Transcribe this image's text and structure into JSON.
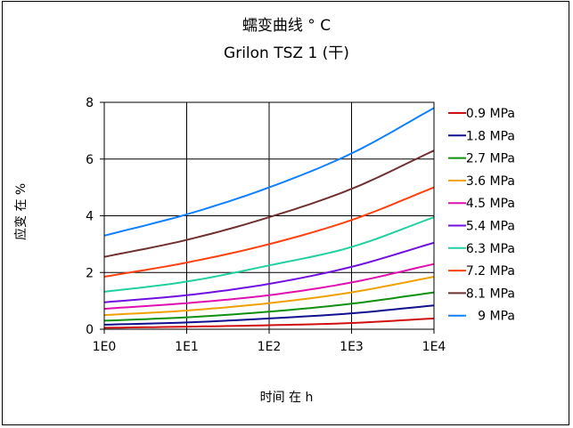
{
  "chart_data": {
    "type": "line",
    "title": "蠕变曲线 °  C",
    "subtitle": "Grilon TSZ 1 (干)",
    "xlabel": "时间 在 h",
    "ylabel": "应变 在  %",
    "x_scale": "log",
    "x_ticks": [
      "1E0",
      "1E1",
      "1E2",
      "1E3",
      "1E4"
    ],
    "xlim": [
      1,
      10000
    ],
    "y_ticks": [
      "0",
      "2",
      "4",
      "6",
      "8"
    ],
    "ylim": [
      0,
      8
    ],
    "grid": true,
    "legend_position": "right",
    "x": [
      1,
      10,
      100,
      1000,
      10000
    ],
    "series": [
      {
        "name": "0.9 MPa",
        "color": "#d01010",
        "values": [
          0.05,
          0.09,
          0.14,
          0.22,
          0.38
        ]
      },
      {
        "name": "1.8 MPa",
        "color": "#101090",
        "values": [
          0.16,
          0.24,
          0.38,
          0.56,
          0.84
        ]
      },
      {
        "name": "2.7 MPa",
        "color": "#109010",
        "values": [
          0.3,
          0.42,
          0.62,
          0.9,
          1.3
        ]
      },
      {
        "name": "3.6 MPa",
        "color": "#f0a000",
        "values": [
          0.5,
          0.66,
          0.92,
          1.3,
          1.85
        ]
      },
      {
        "name": "4.5 MPa",
        "color": "#e010b0",
        "values": [
          0.72,
          0.92,
          1.2,
          1.65,
          2.3
        ]
      },
      {
        "name": "5.4 MPa",
        "color": "#7010e0",
        "values": [
          0.95,
          1.2,
          1.6,
          2.2,
          3.05
        ]
      },
      {
        "name": "6.3 MPa",
        "color": "#20d0a0",
        "values": [
          1.32,
          1.68,
          2.25,
          2.9,
          3.95
        ]
      },
      {
        "name": "7.2 MPa",
        "color": "#ff4010",
        "values": [
          1.85,
          2.35,
          3.0,
          3.85,
          5.0
        ]
      },
      {
        "name": "8.1 MPa",
        "color": "#703030",
        "values": [
          2.55,
          3.15,
          3.95,
          4.95,
          6.3
        ]
      },
      {
        "name": "9 MPa",
        "color": "#1080ff",
        "values": [
          3.3,
          4.05,
          5.0,
          6.2,
          7.8
        ]
      }
    ]
  }
}
